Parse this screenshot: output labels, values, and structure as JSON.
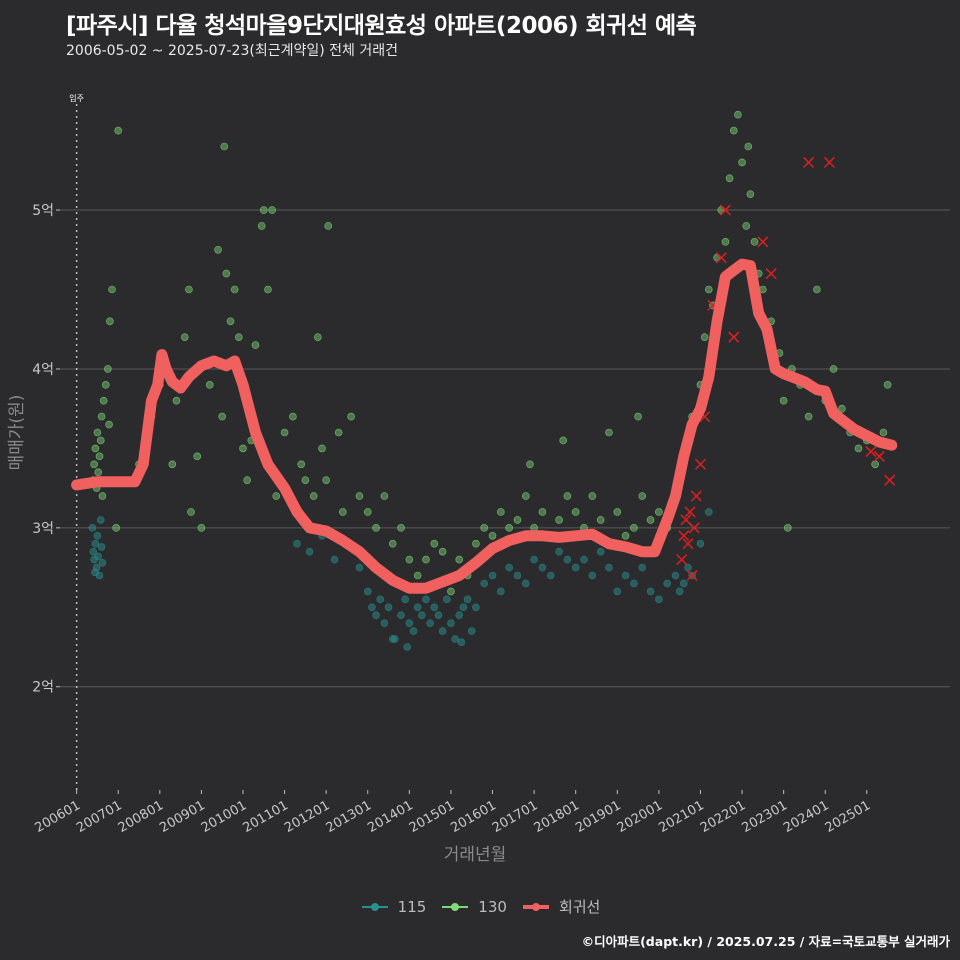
{
  "header": {
    "title": "[파주시] 다율 청석마을9단지대원효성 아파트(2006) 회귀선 예측",
    "subtitle": "2006-05-02 ~ 2025-07-23(최근계약일) 전체 거래건"
  },
  "caption": "©디아파트(dapt.kr) / 2025.07.25 / 자료=국토교통부 실거래가",
  "colors": {
    "background": "#2b2a2c",
    "grid": "#5a5a5c",
    "series_115": "#2a8f90",
    "series_130": "#7fd87a",
    "regression": "#f0605e",
    "cross": "#e02020"
  },
  "chart_data": {
    "type": "scatter",
    "title": "[파주시] 다율 청석마을9단지대원효성 아파트(2006) 회귀선 예측",
    "xlabel": "거래년월",
    "ylabel": "매매가(원)",
    "xlim": [
      2005.6,
      2027.0
    ],
    "ylim": [
      1.35,
      5.85
    ],
    "yticks": [
      2,
      3,
      4,
      5
    ],
    "ytick_labels": [
      "2억",
      "3억",
      "4억",
      "5억"
    ],
    "xticks": [
      2006,
      2007,
      2008,
      2009,
      2010,
      2011,
      2012,
      2013,
      2014,
      2015,
      2016,
      2017,
      2018,
      2019,
      2020,
      2021,
      2022,
      2023,
      2024,
      2025
    ],
    "xtick_labels": [
      "200601",
      "200701",
      "200801",
      "200901",
      "201001",
      "201101",
      "201201",
      "201301",
      "201401",
      "201501",
      "201601",
      "201701",
      "201801",
      "201901",
      "202001",
      "202101",
      "202201",
      "202301",
      "202401",
      "202501"
    ],
    "annotation": {
      "x": 2006.0,
      "label": "입주"
    },
    "legend": [
      {
        "key": "115",
        "label": "115"
      },
      {
        "key": "130",
        "label": "130"
      },
      {
        "key": "regression",
        "label": "회귀선"
      }
    ],
    "series": [
      {
        "name": "115",
        "points": [
          [
            2006.4,
            2.85
          ],
          [
            2006.42,
            2.8
          ],
          [
            2006.45,
            2.9
          ],
          [
            2006.48,
            2.75
          ],
          [
            2006.5,
            2.95
          ],
          [
            2006.52,
            2.82
          ],
          [
            2006.55,
            2.7
          ],
          [
            2006.6,
            2.88
          ],
          [
            2006.62,
            2.78
          ],
          [
            2006.38,
            3.0
          ],
          [
            2006.58,
            3.05
          ],
          [
            2006.44,
            2.72
          ],
          [
            2011.3,
            2.9
          ],
          [
            2011.6,
            2.85
          ],
          [
            2011.9,
            2.95
          ],
          [
            2012.2,
            2.8
          ],
          [
            2012.5,
            2.9
          ],
          [
            2012.8,
            2.75
          ],
          [
            2013.0,
            2.6
          ],
          [
            2013.1,
            2.5
          ],
          [
            2013.2,
            2.45
          ],
          [
            2013.3,
            2.55
          ],
          [
            2013.4,
            2.4
          ],
          [
            2013.5,
            2.5
          ],
          [
            2013.6,
            2.3
          ],
          [
            2013.8,
            2.45
          ],
          [
            2013.9,
            2.55
          ],
          [
            2014.0,
            2.4
          ],
          [
            2014.1,
            2.35
          ],
          [
            2014.2,
            2.5
          ],
          [
            2014.3,
            2.45
          ],
          [
            2014.4,
            2.55
          ],
          [
            2014.5,
            2.4
          ],
          [
            2014.6,
            2.5
          ],
          [
            2014.7,
            2.45
          ],
          [
            2014.8,
            2.35
          ],
          [
            2014.9,
            2.55
          ],
          [
            2015.0,
            2.4
          ],
          [
            2015.1,
            2.3
          ],
          [
            2015.2,
            2.45
          ],
          [
            2015.3,
            2.5
          ],
          [
            2015.4,
            2.55
          ],
          [
            2015.5,
            2.35
          ],
          [
            2015.6,
            2.5
          ],
          [
            2015.8,
            2.65
          ],
          [
            2016.0,
            2.7
          ],
          [
            2016.2,
            2.6
          ],
          [
            2016.4,
            2.75
          ],
          [
            2016.6,
            2.7
          ],
          [
            2016.8,
            2.65
          ],
          [
            2017.0,
            2.8
          ],
          [
            2017.2,
            2.75
          ],
          [
            2017.4,
            2.7
          ],
          [
            2017.6,
            2.85
          ],
          [
            2017.8,
            2.8
          ],
          [
            2018.0,
            2.75
          ],
          [
            2018.2,
            2.8
          ],
          [
            2018.4,
            2.7
          ],
          [
            2018.6,
            2.85
          ],
          [
            2018.8,
            2.75
          ],
          [
            2019.0,
            2.6
          ],
          [
            2019.2,
            2.7
          ],
          [
            2019.4,
            2.65
          ],
          [
            2019.6,
            2.75
          ],
          [
            2019.8,
            2.6
          ],
          [
            2020.0,
            2.55
          ],
          [
            2020.2,
            2.65
          ],
          [
            2020.4,
            2.7
          ],
          [
            2020.5,
            2.6
          ],
          [
            2020.6,
            2.65
          ],
          [
            2020.7,
            2.75
          ],
          [
            2020.8,
            2.7
          ],
          [
            2021.0,
            2.9
          ],
          [
            2021.2,
            3.1
          ],
          [
            2013.65,
            2.3
          ],
          [
            2013.95,
            2.25
          ],
          [
            2015.25,
            2.28
          ]
        ]
      },
      {
        "name": "130",
        "points": [
          [
            2006.4,
            3.3
          ],
          [
            2006.42,
            3.4
          ],
          [
            2006.45,
            3.5
          ],
          [
            2006.48,
            3.25
          ],
          [
            2006.5,
            3.6
          ],
          [
            2006.52,
            3.35
          ],
          [
            2006.55,
            3.45
          ],
          [
            2006.58,
            3.55
          ],
          [
            2006.6,
            3.7
          ],
          [
            2006.62,
            3.2
          ],
          [
            2006.65,
            3.8
          ],
          [
            2006.7,
            3.9
          ],
          [
            2006.75,
            4.0
          ],
          [
            2006.78,
            3.65
          ],
          [
            2006.8,
            4.3
          ],
          [
            2006.85,
            4.5
          ],
          [
            2006.95,
            3.0
          ],
          [
            2007.0,
            5.5
          ],
          [
            2007.5,
            3.4
          ],
          [
            2007.8,
            3.7
          ],
          [
            2008.0,
            3.9
          ],
          [
            2008.2,
            4.0
          ],
          [
            2008.4,
            3.8
          ],
          [
            2008.6,
            4.2
          ],
          [
            2008.7,
            4.5
          ],
          [
            2008.9,
            3.45
          ],
          [
            2009.0,
            3.0
          ],
          [
            2009.2,
            3.9
          ],
          [
            2009.4,
            4.75
          ],
          [
            2009.5,
            3.7
          ],
          [
            2009.6,
            4.6
          ],
          [
            2009.7,
            4.3
          ],
          [
            2009.8,
            4.5
          ],
          [
            2009.9,
            4.2
          ],
          [
            2010.0,
            3.5
          ],
          [
            2010.1,
            3.3
          ],
          [
            2010.3,
            4.15
          ],
          [
            2010.5,
            5.0
          ],
          [
            2010.6,
            4.5
          ],
          [
            2010.7,
            5.0
          ],
          [
            2010.8,
            3.2
          ],
          [
            2011.0,
            3.6
          ],
          [
            2011.2,
            3.7
          ],
          [
            2011.4,
            3.4
          ],
          [
            2011.5,
            3.3
          ],
          [
            2011.7,
            3.2
          ],
          [
            2011.9,
            3.5
          ],
          [
            2012.0,
            3.3
          ],
          [
            2012.3,
            3.6
          ],
          [
            2012.4,
            3.1
          ],
          [
            2012.6,
            3.7
          ],
          [
            2012.8,
            3.2
          ],
          [
            2013.0,
            3.1
          ],
          [
            2013.2,
            3.0
          ],
          [
            2013.4,
            3.2
          ],
          [
            2013.6,
            2.9
          ],
          [
            2013.8,
            3.0
          ],
          [
            2014.0,
            2.8
          ],
          [
            2014.2,
            2.7
          ],
          [
            2014.4,
            2.8
          ],
          [
            2014.6,
            2.9
          ],
          [
            2014.8,
            2.85
          ],
          [
            2015.0,
            2.6
          ],
          [
            2015.2,
            2.8
          ],
          [
            2015.4,
            2.7
          ],
          [
            2015.6,
            2.9
          ],
          [
            2015.8,
            3.0
          ],
          [
            2016.0,
            2.95
          ],
          [
            2016.2,
            3.1
          ],
          [
            2016.4,
            3.0
          ],
          [
            2016.6,
            3.05
          ],
          [
            2016.8,
            3.2
          ],
          [
            2017.0,
            3.0
          ],
          [
            2017.2,
            3.1
          ],
          [
            2017.4,
            2.95
          ],
          [
            2017.6,
            3.05
          ],
          [
            2017.8,
            3.2
          ],
          [
            2018.0,
            3.1
          ],
          [
            2018.2,
            3.0
          ],
          [
            2018.4,
            3.2
          ],
          [
            2018.6,
            3.05
          ],
          [
            2018.8,
            3.6
          ],
          [
            2019.0,
            3.1
          ],
          [
            2019.2,
            2.95
          ],
          [
            2019.4,
            3.0
          ],
          [
            2019.6,
            3.2
          ],
          [
            2019.8,
            3.05
          ],
          [
            2020.0,
            3.1
          ],
          [
            2020.2,
            3.0
          ],
          [
            2020.4,
            3.2
          ],
          [
            2020.6,
            3.4
          ],
          [
            2020.8,
            3.7
          ],
          [
            2021.0,
            3.9
          ],
          [
            2021.1,
            4.2
          ],
          [
            2021.2,
            4.5
          ],
          [
            2021.3,
            4.4
          ],
          [
            2021.4,
            4.7
          ],
          [
            2021.5,
            5.0
          ],
          [
            2021.6,
            4.8
          ],
          [
            2021.7,
            5.2
          ],
          [
            2021.8,
            5.5
          ],
          [
            2021.9,
            5.6
          ],
          [
            2022.0,
            5.3
          ],
          [
            2022.1,
            4.9
          ],
          [
            2022.2,
            5.1
          ],
          [
            2022.3,
            4.8
          ],
          [
            2022.4,
            4.6
          ],
          [
            2022.5,
            4.5
          ],
          [
            2022.7,
            4.3
          ],
          [
            2022.9,
            4.1
          ],
          [
            2023.0,
            3.8
          ],
          [
            2023.2,
            4.0
          ],
          [
            2023.4,
            3.9
          ],
          [
            2023.6,
            3.7
          ],
          [
            2023.8,
            4.5
          ],
          [
            2024.0,
            3.8
          ],
          [
            2024.2,
            4.0
          ],
          [
            2024.4,
            3.75
          ],
          [
            2024.6,
            3.6
          ],
          [
            2024.8,
            3.5
          ],
          [
            2025.0,
            3.55
          ],
          [
            2025.2,
            3.4
          ],
          [
            2025.4,
            3.6
          ],
          [
            2025.5,
            3.9
          ],
          [
            2022.15,
            5.4
          ],
          [
            2009.55,
            5.4
          ],
          [
            2010.45,
            4.9
          ],
          [
            2012.05,
            4.9
          ],
          [
            2008.75,
            3.1
          ],
          [
            2011.8,
            4.2
          ],
          [
            2023.1,
            3.0
          ],
          [
            2019.5,
            3.7
          ],
          [
            2016.9,
            3.4
          ],
          [
            2017.7,
            3.55
          ],
          [
            2010.2,
            3.55
          ],
          [
            2008.3,
            3.4
          ]
        ]
      }
    ],
    "crosses": [
      [
        2020.55,
        2.8
      ],
      [
        2020.6,
        2.95
      ],
      [
        2020.65,
        3.05
      ],
      [
        2020.7,
        2.9
      ],
      [
        2020.75,
        3.1
      ],
      [
        2020.8,
        2.7
      ],
      [
        2020.85,
        3.0
      ],
      [
        2020.9,
        3.2
      ],
      [
        2021.0,
        3.4
      ],
      [
        2021.1,
        3.7
      ],
      [
        2021.3,
        4.4
      ],
      [
        2021.5,
        4.7
      ],
      [
        2021.6,
        5.0
      ],
      [
        2021.8,
        4.2
      ],
      [
        2022.5,
        4.8
      ],
      [
        2022.7,
        4.6
      ],
      [
        2023.6,
        5.3
      ],
      [
        2024.1,
        5.3
      ],
      [
        2025.1,
        3.48
      ],
      [
        2025.3,
        3.45
      ],
      [
        2025.55,
        3.3
      ]
    ],
    "regression_line": {
      "x": [
        2006.0,
        2006.5,
        2007.0,
        2007.4,
        2007.6,
        2007.8,
        2007.95,
        2008.05,
        2008.15,
        2008.3,
        2008.5,
        2008.7,
        2009.0,
        2009.3,
        2009.6,
        2009.8,
        2010.0,
        2010.3,
        2010.6,
        2011.0,
        2011.3,
        2011.6,
        2012.0,
        2012.4,
        2012.8,
        2013.2,
        2013.6,
        2014.0,
        2014.4,
        2014.8,
        2015.2,
        2015.6,
        2016.0,
        2016.4,
        2016.8,
        2017.2,
        2017.6,
        2018.0,
        2018.4,
        2018.8,
        2019.2,
        2019.6,
        2019.9,
        2020.2,
        2020.4,
        2020.6,
        2020.8,
        2021.0,
        2021.2,
        2021.4,
        2021.6,
        2021.8,
        2022.0,
        2022.2,
        2022.4,
        2022.6,
        2022.8,
        2023.0,
        2023.2,
        2023.5,
        2023.8,
        2024.0,
        2024.2,
        2024.4,
        2024.7,
        2025.0,
        2025.3,
        2025.6
      ],
      "y": [
        3.27,
        3.29,
        3.29,
        3.29,
        3.4,
        3.8,
        3.9,
        4.09,
        4.0,
        3.92,
        3.88,
        3.95,
        4.02,
        4.05,
        4.02,
        4.05,
        3.9,
        3.6,
        3.4,
        3.25,
        3.1,
        3.0,
        2.98,
        2.92,
        2.85,
        2.75,
        2.67,
        2.62,
        2.62,
        2.66,
        2.7,
        2.78,
        2.87,
        2.92,
        2.95,
        2.95,
        2.94,
        2.95,
        2.96,
        2.9,
        2.88,
        2.85,
        2.85,
        3.05,
        3.2,
        3.45,
        3.65,
        3.75,
        3.95,
        4.3,
        4.58,
        4.62,
        4.66,
        4.65,
        4.35,
        4.25,
        4.0,
        3.97,
        3.95,
        3.92,
        3.87,
        3.86,
        3.72,
        3.68,
        3.62,
        3.58,
        3.54,
        3.52
      ]
    }
  }
}
